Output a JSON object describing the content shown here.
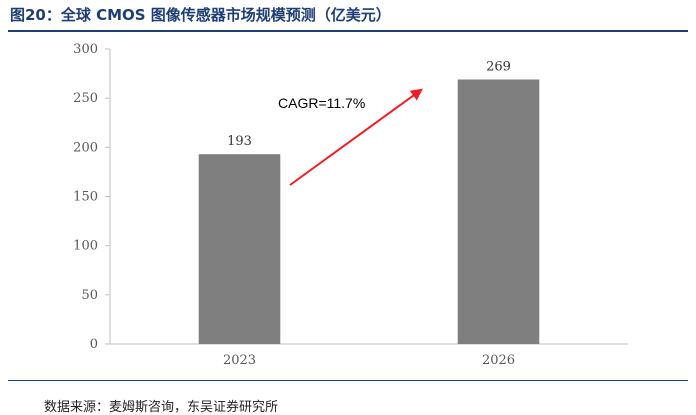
{
  "header": {
    "title": "图20：全球 CMOS 图像传感器市场规模预测（亿美元）"
  },
  "chart_data": {
    "type": "bar",
    "title": "",
    "xlabel": "",
    "ylabel": "",
    "categories": [
      "2023",
      "2026"
    ],
    "values": [
      193,
      269
    ],
    "data_labels": [
      "193",
      "269"
    ],
    "ylim": [
      0,
      300
    ],
    "yticks": [
      0,
      50,
      100,
      150,
      200,
      250,
      300
    ],
    "ytick_labels": [
      "0",
      "50",
      "100",
      "150",
      "200",
      "250",
      "300"
    ],
    "grid": false,
    "legend": "none",
    "bar_color": "#7f7f7f",
    "annotation": {
      "text": "CAGR=11.7%",
      "arrow_color": "#ee1c25"
    }
  },
  "footer": {
    "source": "数据来源：麦姆斯咨询，东吴证券研究所"
  }
}
